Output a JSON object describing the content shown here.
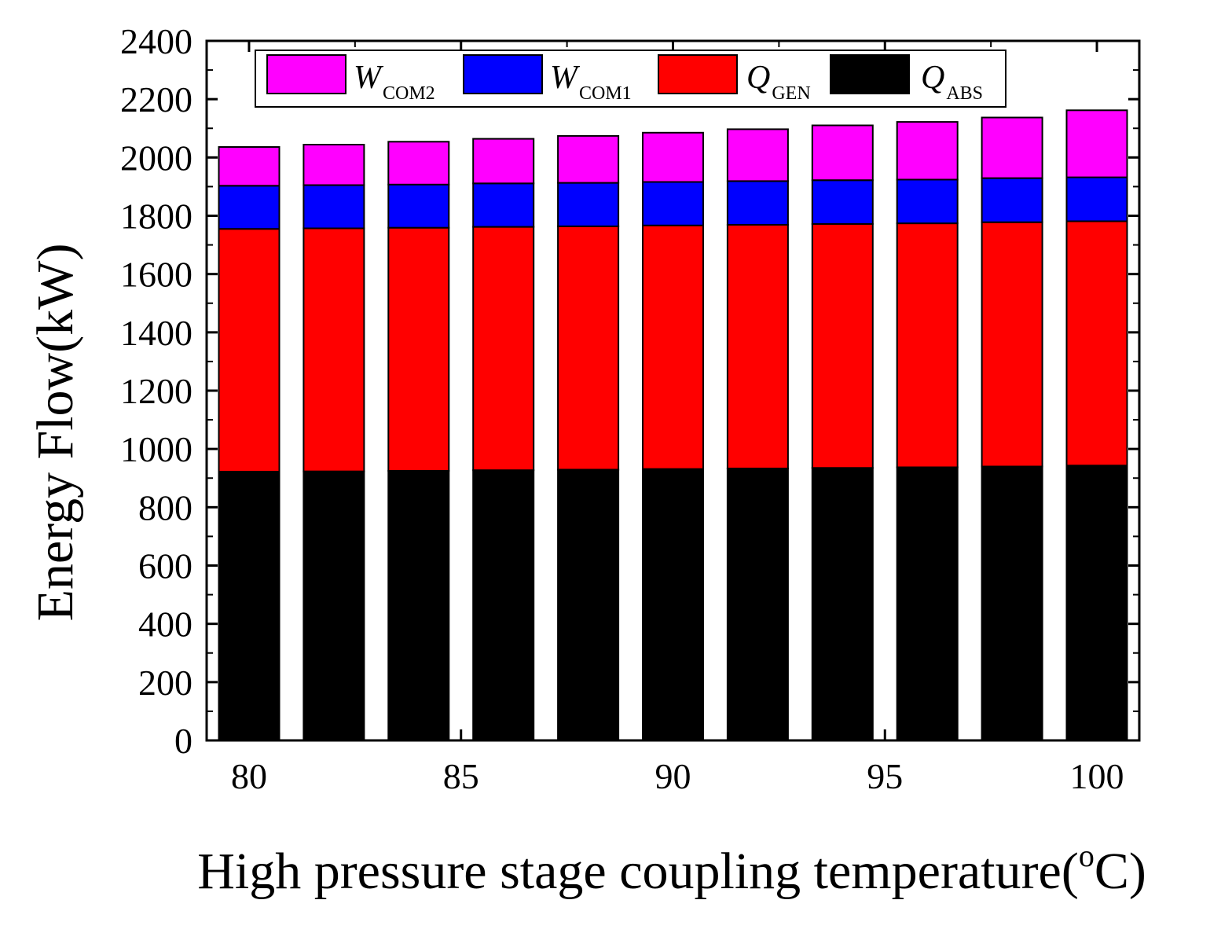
{
  "chart_data": {
    "type": "bar",
    "stacked": true,
    "title": "",
    "xlabel": "High pressure stage coupling temperature(",
    "xlabel_degree": "o",
    "xlabel_unit": "C)",
    "ylabel": "Energy Flow(kW)",
    "x": [
      80,
      82,
      84,
      86,
      88,
      90,
      92,
      94,
      96,
      98,
      100
    ],
    "xlim": [
      79,
      101
    ],
    "x_ticks": [
      80,
      85,
      90,
      95,
      100
    ],
    "ylim": [
      0,
      2400
    ],
    "y_ticks": [
      0,
      200,
      400,
      600,
      800,
      1000,
      1200,
      1400,
      1600,
      1800,
      2000,
      2200,
      2400
    ],
    "grid": false,
    "legend_position": "top",
    "series": [
      {
        "name": "Q",
        "subscript": "ABS",
        "color": "#000000",
        "values": [
          922,
          923,
          925,
          927,
          929,
          931,
          933,
          935,
          937,
          940,
          943
        ]
      },
      {
        "name": "Q",
        "subscript": "GEN",
        "color": "#ff0000",
        "values": [
          833,
          834,
          834,
          835,
          835,
          836,
          836,
          837,
          837,
          838,
          838
        ]
      },
      {
        "name": "W",
        "subscript": "COM1",
        "color": "#0000ff",
        "values": [
          148,
          148,
          148,
          149,
          149,
          149,
          150,
          150,
          150,
          151,
          151
        ]
      },
      {
        "name": "W",
        "subscript": "COM2",
        "color": "#ff00ff",
        "values": [
          133,
          139,
          147,
          153,
          161,
          169,
          178,
          188,
          198,
          208,
          230
        ]
      }
    ],
    "legend_order": [
      3,
      2,
      1,
      0
    ]
  }
}
